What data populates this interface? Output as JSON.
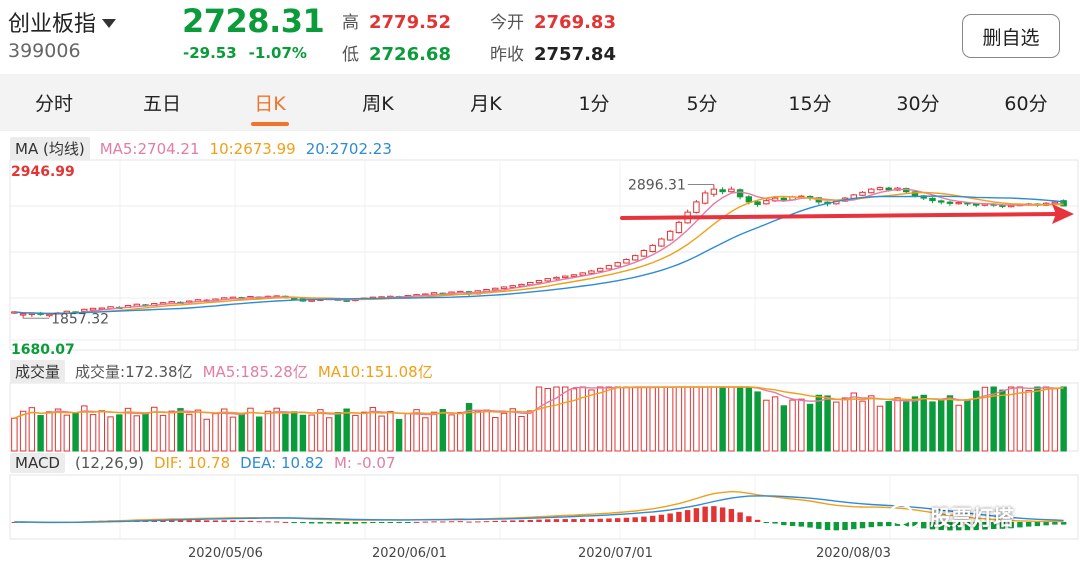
{
  "header": {
    "stock_name": "创业板指",
    "stock_code": "399006",
    "price": "2728.31",
    "change": "-29.53",
    "change_pct": "-1.07%",
    "high_label": "高",
    "high": "2779.52",
    "low_label": "低",
    "low": "2726.68",
    "open_label": "今开",
    "open": "2769.83",
    "prev_close_label": "昨收",
    "prev_close": "2757.84",
    "remove_watch_label": "删自选"
  },
  "tabs": [
    {
      "label": "分时",
      "active": false
    },
    {
      "label": "五日",
      "active": false
    },
    {
      "label": "日K",
      "active": true
    },
    {
      "label": "周K",
      "active": false
    },
    {
      "label": "月K",
      "active": false
    },
    {
      "label": "1分",
      "active": false
    },
    {
      "label": "5分",
      "active": false
    },
    {
      "label": "15分",
      "active": false
    },
    {
      "label": "30分",
      "active": false
    },
    {
      "label": "60分",
      "active": false
    }
  ],
  "price_legend": {
    "tag": "MA (均线)",
    "ma5": "MA5:2704.21",
    "ma10": "10:2673.99",
    "ma20": "20:2702.23"
  },
  "price_axis": {
    "max_label": "2946.99",
    "min_label": "1680.07",
    "high_marker": "2896.31",
    "low_marker": "1857.32"
  },
  "volume_legend": {
    "tag": "成交量",
    "vol": "成交量:172.38亿",
    "ma5": "MA5:185.28亿",
    "ma10": "MA10:151.08亿"
  },
  "macd_legend": {
    "tag": "MACD",
    "params": "(12,26,9)",
    "dif": "DIF: 10.78",
    "dea": "DEA: 10.82",
    "m": "M: -0.07"
  },
  "dates": [
    "2020/05/06",
    "2020/06/01",
    "2020/07/01",
    "2020/08/03"
  ],
  "watermark": "股票灯塔",
  "colors": {
    "up": "#e23434",
    "down": "#0a9b3a",
    "ma5": "#e47ca6",
    "ma10": "#f0a019",
    "ma20": "#2f8ad8",
    "active_tab": "#f0752b",
    "annotation_arrow": "#e8323c"
  },
  "chart_data": {
    "type": "candlestick",
    "y_range": [
      1680.07,
      2946.99
    ],
    "candles": [
      [
        1890,
        1900,
        1885,
        1905
      ],
      [
        1875,
        1885,
        1850,
        1890
      ],
      [
        1880,
        1890,
        1860,
        1895
      ],
      [
        1892,
        1880,
        1870,
        1900
      ],
      [
        1870,
        1880,
        1857.32,
        1885
      ],
      [
        1885,
        1892,
        1880,
        1900
      ],
      [
        1890,
        1905,
        1888,
        1910
      ],
      [
        1900,
        1895,
        1885,
        1905
      ],
      [
        1905,
        1920,
        1898,
        1925
      ],
      [
        1915,
        1928,
        1910,
        1930
      ],
      [
        1920,
        1930,
        1915,
        1935
      ],
      [
        1925,
        1940,
        1920,
        1945
      ],
      [
        1935,
        1932,
        1925,
        1945
      ],
      [
        1935,
        1950,
        1930,
        1955
      ],
      [
        1945,
        1960,
        1940,
        1965
      ],
      [
        1955,
        1950,
        1940,
        1962
      ],
      [
        1950,
        1965,
        1945,
        1970
      ],
      [
        1960,
        1972,
        1955,
        1978
      ],
      [
        1968,
        1980,
        1962,
        1985
      ],
      [
        1975,
        1970,
        1965,
        1982
      ],
      [
        1972,
        1985,
        1968,
        1990
      ],
      [
        1982,
        1995,
        1978,
        2000
      ],
      [
        1990,
        1992,
        1980,
        2000
      ],
      [
        1988,
        2000,
        1985,
        2005
      ],
      [
        1998,
        2010,
        1992,
        2015
      ],
      [
        2005,
        2015,
        2000,
        2020
      ],
      [
        2012,
        2008,
        2000,
        2018
      ],
      [
        2008,
        2020,
        2004,
        2025
      ],
      [
        2016,
        2010,
        2005,
        2022
      ],
      [
        2010,
        2022,
        2006,
        2028
      ],
      [
        2018,
        2025,
        2012,
        2030
      ],
      [
        2022,
        2010,
        2005,
        2028
      ],
      [
        2010,
        2008,
        1995,
        2015
      ],
      [
        2005,
        1985,
        1978,
        2010
      ],
      [
        1988,
        1992,
        1980,
        1998
      ],
      [
        1990,
        2000,
        1985,
        2005
      ],
      [
        1998,
        2005,
        1992,
        2010
      ],
      [
        2000,
        1990,
        1985,
        2008
      ],
      [
        1992,
        1985,
        1978,
        1998
      ],
      [
        1988,
        2000,
        1982,
        2005
      ],
      [
        1998,
        2008,
        1995,
        2012
      ],
      [
        2005,
        2015,
        2000,
        2020
      ],
      [
        2012,
        2018,
        2006,
        2022
      ],
      [
        2016,
        2022,
        2010,
        2028
      ],
      [
        2020,
        2015,
        2010,
        2026
      ],
      [
        2015,
        2028,
        2012,
        2032
      ],
      [
        2025,
        2035,
        2020,
        2040
      ],
      [
        2032,
        2040,
        2028,
        2045
      ],
      [
        2038,
        2050,
        2032,
        2055
      ],
      [
        2046,
        2040,
        2035,
        2052
      ],
      [
        2040,
        2055,
        2036,
        2060
      ],
      [
        2052,
        2060,
        2048,
        2065
      ],
      [
        2058,
        2040,
        2020,
        2062
      ],
      [
        2040,
        2065,
        2035,
        2070
      ],
      [
        2062,
        2075,
        2058,
        2080
      ],
      [
        2072,
        2085,
        2068,
        2090
      ],
      [
        2082,
        2095,
        2078,
        2100
      ],
      [
        2092,
        2105,
        2086,
        2110
      ],
      [
        2102,
        2115,
        2098,
        2120
      ],
      [
        2112,
        2130,
        2108,
        2135
      ],
      [
        2128,
        2145,
        2122,
        2150
      ],
      [
        2142,
        2160,
        2138,
        2165
      ],
      [
        2158,
        2170,
        2150,
        2178
      ],
      [
        2168,
        2180,
        2160,
        2185
      ],
      [
        2178,
        2190,
        2172,
        2195
      ],
      [
        2188,
        2205,
        2182,
        2210
      ],
      [
        2202,
        2220,
        2196,
        2228
      ],
      [
        2218,
        2240,
        2212,
        2246
      ],
      [
        2236,
        2262,
        2232,
        2268
      ],
      [
        2258,
        2285,
        2252,
        2292
      ],
      [
        2282,
        2310,
        2278,
        2318
      ],
      [
        2306,
        2340,
        2300,
        2348
      ],
      [
        2336,
        2380,
        2330,
        2390
      ],
      [
        2372,
        2420,
        2365,
        2430
      ],
      [
        2415,
        2470,
        2408,
        2480
      ],
      [
        2462,
        2530,
        2455,
        2540
      ],
      [
        2520,
        2600,
        2512,
        2612
      ],
      [
        2596,
        2680,
        2590,
        2700
      ],
      [
        2678,
        2760,
        2670,
        2775
      ],
      [
        2750,
        2830,
        2740,
        2850
      ],
      [
        2820,
        2860,
        2800,
        2896.31
      ],
      [
        2855,
        2840,
        2820,
        2875
      ],
      [
        2840,
        2860,
        2830,
        2880
      ],
      [
        2855,
        2800,
        2780,
        2865
      ],
      [
        2800,
        2760,
        2740,
        2812
      ],
      [
        2760,
        2740,
        2720,
        2775
      ],
      [
        2745,
        2770,
        2738,
        2782
      ],
      [
        2768,
        2790,
        2760,
        2800
      ],
      [
        2788,
        2775,
        2760,
        2798
      ],
      [
        2776,
        2800,
        2770,
        2808
      ],
      [
        2798,
        2805,
        2785,
        2815
      ],
      [
        2802,
        2790,
        2770,
        2812
      ],
      [
        2792,
        2760,
        2740,
        2798
      ],
      [
        2758,
        2745,
        2725,
        2765
      ],
      [
        2745,
        2768,
        2738,
        2778
      ],
      [
        2766,
        2790,
        2760,
        2798
      ],
      [
        2788,
        2815,
        2782,
        2822
      ],
      [
        2812,
        2835,
        2806,
        2845
      ],
      [
        2832,
        2860,
        2826,
        2868
      ],
      [
        2856,
        2872,
        2848,
        2880
      ],
      [
        2868,
        2855,
        2840,
        2878
      ],
      [
        2852,
        2868,
        2845,
        2876
      ],
      [
        2865,
        2840,
        2825,
        2872
      ],
      [
        2838,
        2810,
        2795,
        2845
      ],
      [
        2808,
        2790,
        2775,
        2815
      ],
      [
        2788,
        2770,
        2750,
        2796
      ],
      [
        2768,
        2760,
        2740,
        2778
      ],
      [
        2758,
        2750,
        2730,
        2768
      ],
      [
        2748,
        2755,
        2738,
        2762
      ],
      [
        2754,
        2745,
        2728,
        2760
      ],
      [
        2744,
        2735,
        2718,
        2750
      ],
      [
        2734,
        2745,
        2725,
        2752
      ],
      [
        2744,
        2738,
        2722,
        2750
      ],
      [
        2736,
        2725,
        2712,
        2742
      ],
      [
        2724,
        2732,
        2716,
        2740
      ],
      [
        2731,
        2740,
        2725,
        2748
      ],
      [
        2738,
        2745,
        2730,
        2752
      ],
      [
        2744,
        2735,
        2722,
        2750
      ],
      [
        2734,
        2750,
        2728,
        2758
      ],
      [
        2748,
        2757.84,
        2740,
        2765
      ],
      [
        2769.83,
        2728.31,
        2726.68,
        2779.52
      ]
    ]
  }
}
